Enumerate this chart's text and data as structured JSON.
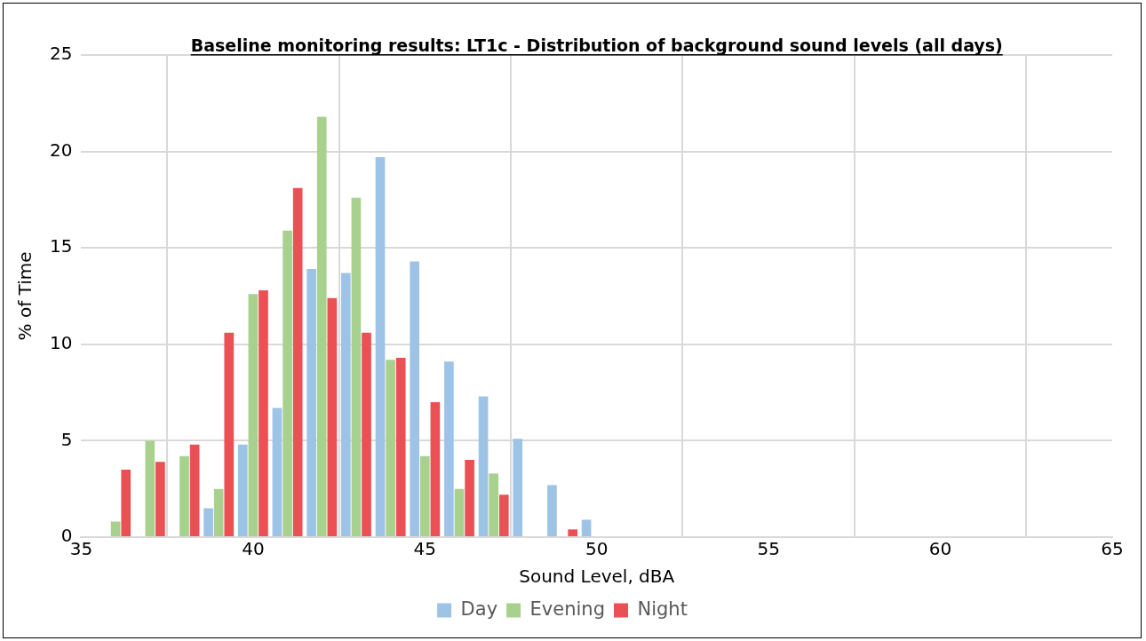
{
  "chart_data": {
    "type": "bar",
    "title": "Baseline monitoring results: LT1c - Distribution of background sound levels (all days)",
    "xlabel": "Sound Level, dBA",
    "ylabel": "% of Time",
    "x": [
      36,
      37,
      38,
      39,
      40,
      41,
      42,
      43,
      44,
      45,
      46,
      47,
      48,
      49,
      50
    ],
    "series": [
      {
        "name": "Day",
        "color": "#9dc3e6",
        "values": [
          0,
          0,
          0,
          1.5,
          4.8,
          6.7,
          13.9,
          13.7,
          19.7,
          14.3,
          9.1,
          7.3,
          5.1,
          2.7,
          0.9
        ]
      },
      {
        "name": "Evening",
        "color": "#a9d18e",
        "values": [
          0.8,
          5.0,
          4.2,
          2.5,
          12.6,
          15.9,
          21.8,
          17.6,
          9.2,
          4.2,
          2.5,
          3.3,
          0,
          0,
          0
        ]
      },
      {
        "name": "Night",
        "color": "#eb5055",
        "values": [
          3.5,
          3.9,
          4.8,
          10.6,
          12.8,
          18.1,
          12.4,
          10.6,
          9.3,
          7.0,
          4.0,
          2.2,
          0,
          0.4,
          0
        ]
      }
    ],
    "xlim": [
      35,
      65
    ],
    "xticks": [
      35,
      40,
      45,
      50,
      55,
      60,
      65
    ],
    "ylim": [
      0,
      25
    ],
    "yticks": [
      0,
      5,
      10,
      15,
      20,
      25
    ],
    "grid": true,
    "legend": "bottom"
  }
}
